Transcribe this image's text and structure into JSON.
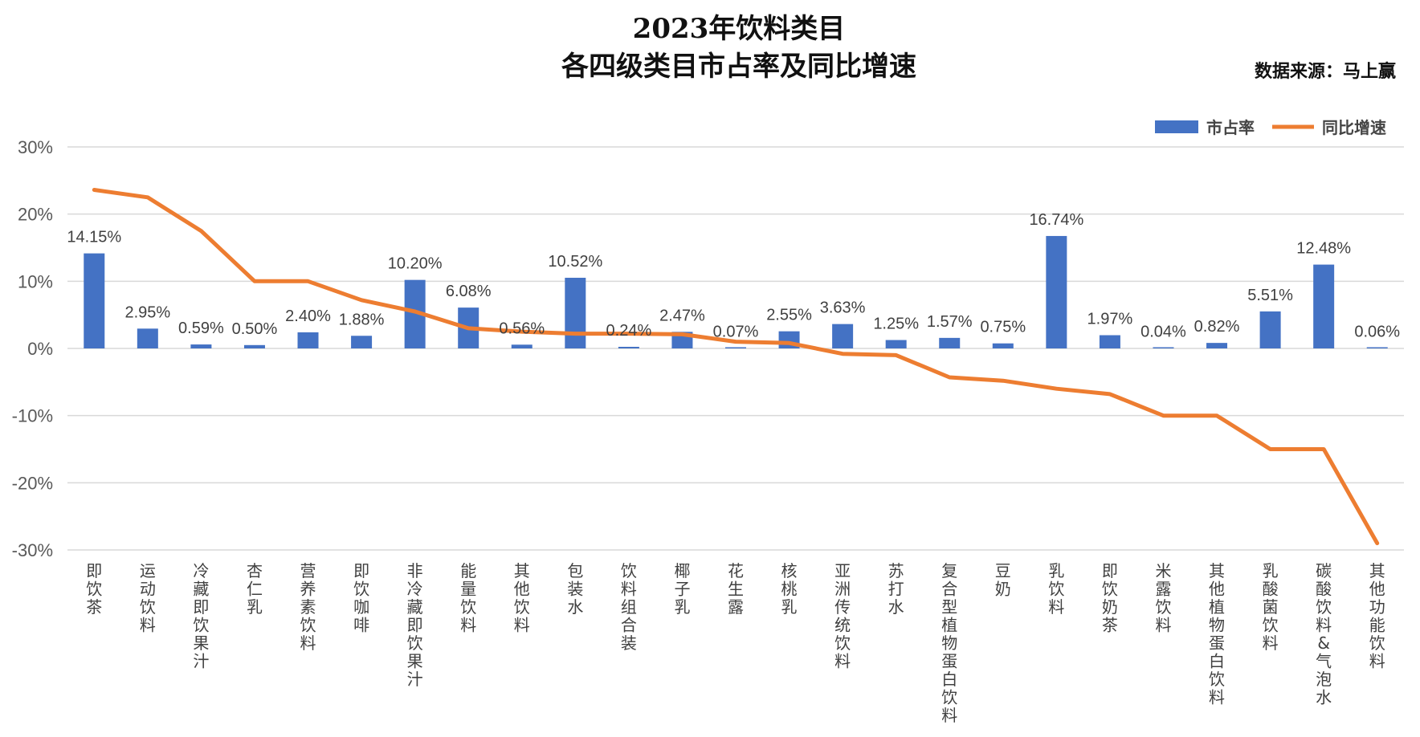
{
  "source_text": "数据来源：马上赢",
  "chart_data": {
    "type": "bar",
    "title": [
      "2023年饮料类目",
      "各四级类目市占率及同比增速"
    ],
    "categories": [
      "即饮茶",
      "运动饮料",
      "冷藏即饮果汁",
      "杏仁乳",
      "营养素饮料",
      "即饮咖啡",
      "非冷藏即饮果汁",
      "能量饮料",
      "其他饮料",
      "包装水",
      "饮料组合装",
      "椰子乳",
      "花生露",
      "核桃乳",
      "亚洲传统饮料",
      "苏打水",
      "复合型植物蛋白饮料",
      "豆奶",
      "乳饮料",
      "即饮奶茶",
      "米露饮料",
      "其他植物蛋白饮料",
      "乳酸菌饮料",
      "碳酸饮料&气泡水",
      "其他功能饮料"
    ],
    "series": [
      {
        "name": "市占率",
        "type": "bar",
        "color": "#4472C4",
        "values": [
          14.15,
          2.95,
          0.59,
          0.5,
          2.4,
          1.88,
          10.2,
          6.08,
          0.56,
          10.52,
          0.24,
          2.47,
          0.07,
          2.55,
          3.63,
          1.25,
          1.57,
          0.75,
          16.74,
          1.97,
          0.04,
          0.82,
          5.51,
          12.48,
          0.06
        ],
        "labels": [
          "14.15%",
          "2.95%",
          "0.59%",
          "0.50%",
          "2.40%",
          "1.88%",
          "10.20%",
          "6.08%",
          "0.56%",
          "10.52%",
          "0.24%",
          "2.47%",
          "0.07%",
          "2.55%",
          "3.63%",
          "1.25%",
          "1.57%",
          "0.75%",
          "16.74%",
          "1.97%",
          "0.04%",
          "0.82%",
          "5.51%",
          "12.48%",
          "0.06%"
        ]
      },
      {
        "name": "同比增速",
        "type": "line",
        "color": "#ED7D31",
        "values": [
          23.6,
          22.5,
          17.5,
          10.0,
          10.0,
          7.2,
          5.5,
          3.0,
          2.5,
          2.2,
          2.2,
          2.1,
          1.0,
          0.8,
          -0.8,
          -1.0,
          -4.3,
          -4.8,
          -6.0,
          -6.8,
          -10.0,
          -10.0,
          -15.0,
          -15.0,
          -29.0
        ]
      }
    ],
    "y_ticks": [
      "30%",
      "20%",
      "10%",
      "0%",
      "-10%",
      "-20%",
      "-30%"
    ],
    "y_tick_values": [
      30,
      20,
      10,
      0,
      -10,
      -20,
      -30
    ],
    "ylim": [
      -30,
      30
    ],
    "grid": true,
    "legend_position": "top-right"
  }
}
